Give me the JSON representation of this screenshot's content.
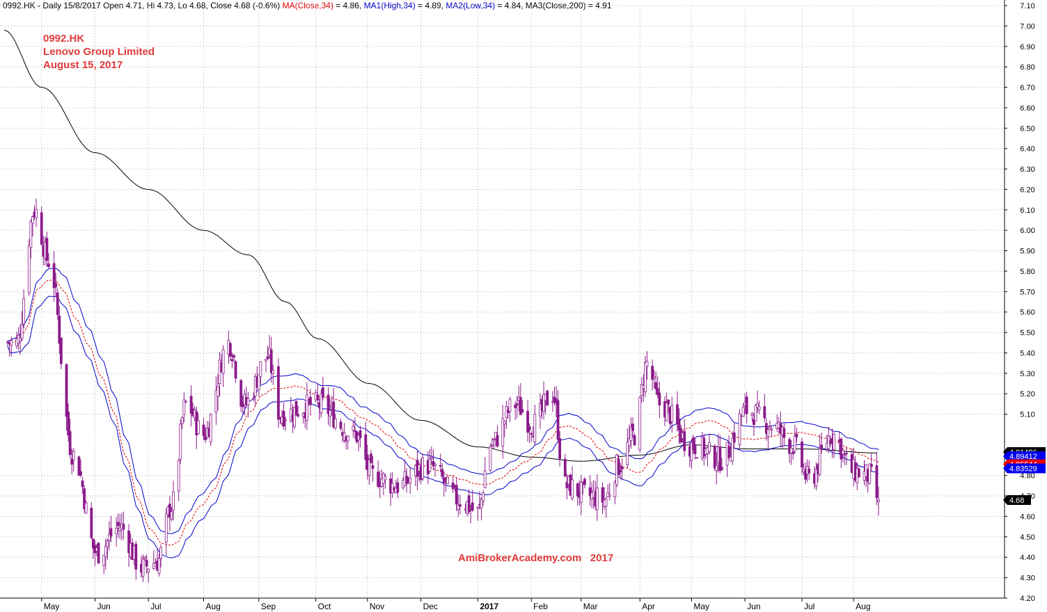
{
  "header": {
    "symbol_info": "0992.HK - Daily 15/8/2017 Open 4.71, Hi 4.73, Lo 4.68, Close 4.68 (-0.6%)",
    "ma_close": "MA(Close,34)",
    "ma_close_value": " = 4.86, ",
    "ma1_high": "MA1(High,34)",
    "ma1_high_value": " = 4.89, ",
    "ma2_low": "MA2(Low,34)",
    "ma2_low_value": " = 4.84, ",
    "ma3": "MA3(Close,200)",
    "ma3_value": " = 4.91"
  },
  "title": {
    "line1": "0992.HK",
    "line2": "Lenovo Group Limited",
    "line3": "August 15, 2017"
  },
  "watermark": "AmiBrokerAcademy.com   2017",
  "colors": {
    "candle": "#8b1a8b",
    "ma_close": "#e00000",
    "ma_high": "#0000cc",
    "ma_low": "#0000cc",
    "ma200": "#000000",
    "grid": "#b0b0b0",
    "label_red": "#e03a3a"
  },
  "chart_data": {
    "type": "candlestick",
    "ylim": [
      4.2,
      7.1
    ],
    "y_ticks": [
      "7.10",
      "7.00",
      "6.90",
      "6.80",
      "6.70",
      "6.60",
      "6.50",
      "6.40",
      "6.30",
      "6.20",
      "6.10",
      "6.00",
      "5.90",
      "5.80",
      "5.70",
      "5.60",
      "5.50",
      "5.40",
      "5.30",
      "5.20",
      "5.10",
      "4.80",
      "4.70",
      "4.60",
      "4.50",
      "4.40",
      "4.30",
      "4.20"
    ],
    "x_labels": [
      {
        "label": "May",
        "bold": false
      },
      {
        "label": "Jun",
        "bold": false
      },
      {
        "label": "Jul",
        "bold": false
      },
      {
        "label": "Aug",
        "bold": false
      },
      {
        "label": "Sep",
        "bold": false
      },
      {
        "label": "Oct",
        "bold": false
      },
      {
        "label": "Nov",
        "bold": false
      },
      {
        "label": "Dec",
        "bold": false
      },
      {
        "label": "2017",
        "bold": true
      },
      {
        "label": "Feb",
        "bold": false
      },
      {
        "label": "Mar",
        "bold": false
      },
      {
        "label": "Apr",
        "bold": false
      },
      {
        "label": "May",
        "bold": false
      },
      {
        "label": "Jun",
        "bold": false
      },
      {
        "label": "Jul",
        "bold": false
      },
      {
        "label": "Aug",
        "bold": false
      }
    ],
    "close_keypoints": [
      {
        "date": "2016-04-18",
        "close": 5.45
      },
      {
        "date": "2016-04-28",
        "close": 6.1
      },
      {
        "date": "2016-05-06",
        "close": 5.85
      },
      {
        "date": "2016-05-20",
        "close": 4.9
      },
      {
        "date": "2016-06-02",
        "close": 4.42
      },
      {
        "date": "2016-06-15",
        "close": 4.55
      },
      {
        "date": "2016-06-27",
        "close": 4.35
      },
      {
        "date": "2016-07-06",
        "close": 4.38
      },
      {
        "date": "2016-07-14",
        "close": 4.65
      },
      {
        "date": "2016-07-22",
        "close": 5.15
      },
      {
        "date": "2016-08-01",
        "close": 5.0
      },
      {
        "date": "2016-08-15",
        "close": 5.45
      },
      {
        "date": "2016-08-24",
        "close": 5.15
      },
      {
        "date": "2016-09-06",
        "close": 5.38
      },
      {
        "date": "2016-09-13",
        "close": 5.1
      },
      {
        "date": "2016-10-04",
        "close": 5.15
      },
      {
        "date": "2016-10-25",
        "close": 5.0
      },
      {
        "date": "2016-11-04",
        "close": 4.8
      },
      {
        "date": "2016-11-18",
        "close": 4.75
      },
      {
        "date": "2016-12-05",
        "close": 4.85
      },
      {
        "date": "2016-12-23",
        "close": 4.68
      },
      {
        "date": "2017-01-02",
        "close": 4.62
      },
      {
        "date": "2017-01-09",
        "close": 4.95
      },
      {
        "date": "2017-01-23",
        "close": 5.15
      },
      {
        "date": "2017-02-02",
        "close": 5.05
      },
      {
        "date": "2017-02-13",
        "close": 5.2
      },
      {
        "date": "2017-02-20",
        "close": 4.75
      },
      {
        "date": "2017-03-06",
        "close": 4.7
      },
      {
        "date": "2017-03-14",
        "close": 4.68
      },
      {
        "date": "2017-03-22",
        "close": 4.85
      },
      {
        "date": "2017-03-31",
        "close": 5.0
      },
      {
        "date": "2017-04-07",
        "close": 5.35
      },
      {
        "date": "2017-04-14",
        "close": 5.15
      },
      {
        "date": "2017-05-02",
        "close": 4.95
      },
      {
        "date": "2017-05-19",
        "close": 4.88
      },
      {
        "date": "2017-06-02",
        "close": 5.12
      },
      {
        "date": "2017-06-16",
        "close": 5.05
      },
      {
        "date": "2017-06-28",
        "close": 4.95
      },
      {
        "date": "2017-07-07",
        "close": 4.78
      },
      {
        "date": "2017-07-20",
        "close": 5.0
      },
      {
        "date": "2017-08-01",
        "close": 4.82
      },
      {
        "date": "2017-08-10",
        "close": 4.8
      },
      {
        "date": "2017-08-15",
        "close": 4.68
      }
    ],
    "ma200_keypoints": [
      {
        "date": "2016-04-11",
        "value": 6.98
      },
      {
        "date": "2016-05-02",
        "value": 6.7
      },
      {
        "date": "2016-06-01",
        "value": 6.38
      },
      {
        "date": "2016-07-01",
        "value": 6.2
      },
      {
        "date": "2016-08-01",
        "value": 6.0
      },
      {
        "date": "2016-08-26",
        "value": 5.88
      },
      {
        "date": "2016-09-16",
        "value": 5.65
      },
      {
        "date": "2016-10-04",
        "value": 5.47
      },
      {
        "date": "2016-11-02",
        "value": 5.25
      },
      {
        "date": "2016-12-01",
        "value": 5.07
      },
      {
        "date": "2017-01-02",
        "value": 4.94
      },
      {
        "date": "2017-02-01",
        "value": 4.89
      },
      {
        "date": "2017-03-01",
        "value": 4.87
      },
      {
        "date": "2017-04-03",
        "value": 4.9
      },
      {
        "date": "2017-05-02",
        "value": 4.95
      },
      {
        "date": "2017-06-02",
        "value": 4.93
      },
      {
        "date": "2017-07-03",
        "value": 4.93
      },
      {
        "date": "2017-08-15",
        "value": 4.91
      }
    ],
    "price_tags": [
      {
        "label": "4.91496",
        "value": 4.915,
        "bg": "#000000",
        "fg": "#ffffff"
      },
      {
        "label": "4.89412",
        "value": 4.894,
        "bg": "#0000ee",
        "fg": "#ffffff"
      },
      {
        "label": "4.85544",
        "value": 4.855,
        "bg": "#ee0000",
        "fg": "#ffffff"
      },
      {
        "label": "4.83529",
        "value": 4.835,
        "bg": "#0000ee",
        "fg": "#ffffff"
      },
      {
        "label": "4.68",
        "value": 4.68,
        "bg": "#000000",
        "fg": "#ffffff"
      }
    ],
    "last_close": 4.68
  }
}
